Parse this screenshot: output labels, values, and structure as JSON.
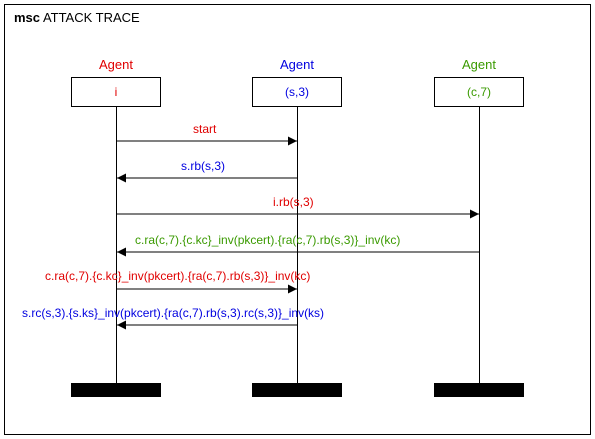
{
  "diagram": {
    "title_keyword": "msc",
    "title_text": "ATTACK TRACE"
  },
  "agents": [
    {
      "role": "Agent",
      "name": "i",
      "color": "#e00000"
    },
    {
      "role": "Agent",
      "name": "(s,3)",
      "color": "#0000e0"
    },
    {
      "role": "Agent",
      "name": "(c,7)",
      "color": "#3a9a00"
    }
  ],
  "messages": [
    {
      "label": "start",
      "from": 0,
      "to": 1,
      "color": "#e00000"
    },
    {
      "label": "s.rb(s,3)",
      "from": 1,
      "to": 0,
      "color": "#0000e0"
    },
    {
      "label": "i.rb(s,3)",
      "from": 0,
      "to": 2,
      "color": "#e00000"
    },
    {
      "label": "c.ra(c,7).{c.kc}_inv(pkcert).{ra(c,7).rb(s,3)}_inv(kc)",
      "from": 2,
      "to": 0,
      "color": "#3a9a00"
    },
    {
      "label": "c.ra(c,7).{c.kc}_inv(pkcert).{ra(c,7).rb(s,3)}_inv(kc)",
      "from": 0,
      "to": 1,
      "color": "#e00000"
    },
    {
      "label": "s.rc(s,3).{s.ks}_inv(pkcert).{ra(c,7).rb(s,3).rc(s,3)}_inv(ks)",
      "from": 1,
      "to": 0,
      "color": "#0000e0"
    }
  ]
}
